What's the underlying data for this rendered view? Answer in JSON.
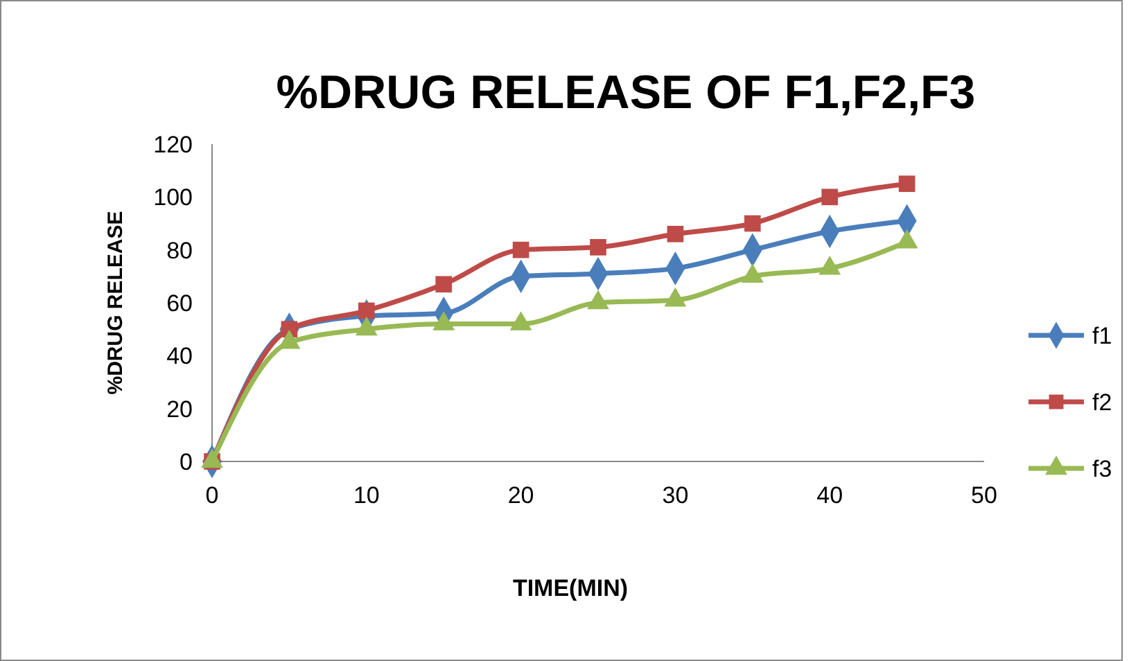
{
  "chart_data": {
    "type": "line",
    "title": "%DRUG RELEASE OF F1,F2,F3",
    "xlabel": "TIME(MIN)",
    "ylabel": "%DRUG RELEASE",
    "x": [
      0,
      5,
      10,
      15,
      20,
      25,
      30,
      35,
      40,
      45
    ],
    "series": [
      {
        "name": "f1",
        "color": "#4a7ebb",
        "marker": "diamond",
        "values": [
          0,
          50,
          55,
          56,
          70,
          71,
          73,
          80,
          87,
          91
        ]
      },
      {
        "name": "f2",
        "color": "#be4b48",
        "marker": "square",
        "values": [
          0,
          50,
          57,
          67,
          80,
          81,
          86,
          90,
          100,
          105
        ]
      },
      {
        "name": "f3",
        "color": "#98b954",
        "marker": "triangle",
        "values": [
          0,
          45,
          50,
          52,
          52,
          60,
          61,
          70,
          73,
          83
        ]
      }
    ],
    "xlim": [
      0,
      50
    ],
    "xticks": [
      0,
      10,
      20,
      30,
      40,
      50
    ],
    "ylim": [
      0,
      120
    ],
    "yticks": [
      0,
      20,
      40,
      60,
      80,
      100,
      120
    ],
    "legend": "right",
    "grid": false
  }
}
